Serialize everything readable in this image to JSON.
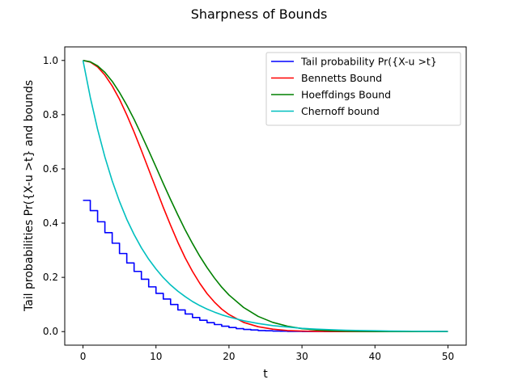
{
  "chart_data": {
    "type": "line",
    "title": "Sharpness of Bounds",
    "xlabel": "t",
    "ylabel": "Tail probabilities Pr({X-u >t} and bounds",
    "xlim": [
      -2.5,
      52.5
    ],
    "ylim": [
      -0.05,
      1.05
    ],
    "xticks": [
      0,
      10,
      20,
      30,
      40,
      50
    ],
    "yticks": [
      0.0,
      0.2,
      0.4,
      0.6,
      0.8,
      1.0
    ],
    "xtick_labels": [
      "0",
      "10",
      "20",
      "30",
      "40",
      "50"
    ],
    "ytick_labels": [
      "0.0",
      "0.2",
      "0.4",
      "0.6",
      "0.8",
      "1.0"
    ],
    "grid": false,
    "legend_position": "top-right",
    "series": [
      {
        "name": "Tail probability Pr({X-u >t}",
        "color": "#0000ff",
        "step": true,
        "x": [
          0,
          1,
          2,
          3,
          4,
          5,
          6,
          7,
          8,
          9,
          10,
          11,
          12,
          13,
          14,
          15,
          16,
          17,
          18,
          19,
          20,
          21,
          22,
          23,
          24,
          25,
          26,
          27,
          28,
          29,
          30,
          31,
          32,
          33,
          34,
          35,
          36,
          37,
          38,
          39,
          40,
          41,
          42,
          43,
          44,
          45,
          46,
          47,
          48,
          49,
          50
        ],
        "y": [
          0.484,
          0.446,
          0.405,
          0.365,
          0.326,
          0.288,
          0.253,
          0.222,
          0.193,
          0.165,
          0.141,
          0.12,
          0.1,
          0.08,
          0.065,
          0.052,
          0.042,
          0.033,
          0.026,
          0.02,
          0.015,
          0.011,
          0.008,
          0.006,
          0.004,
          0.003,
          0.002,
          0.0015,
          0.001,
          0.0008,
          0.0005,
          0.0004,
          0.0003,
          0.0002,
          0.0001,
          0.0001,
          0.0001,
          0.0,
          0.0,
          0.0,
          0.0,
          0.0,
          0.0,
          0.0,
          0.0,
          0.0,
          0.0,
          0.0,
          0.0,
          0.0,
          0.0
        ]
      },
      {
        "name": "Bennetts Bound",
        "color": "#ff0000",
        "x": [
          0,
          1,
          2,
          3,
          4,
          5,
          6,
          7,
          8,
          9,
          10,
          11,
          12,
          13,
          14,
          15,
          16,
          17,
          18,
          19,
          20,
          22,
          24,
          26,
          28,
          30,
          32,
          34,
          36,
          38,
          40,
          42,
          44,
          46,
          48,
          50
        ],
        "y": [
          1.0,
          0.994,
          0.976,
          0.946,
          0.906,
          0.857,
          0.799,
          0.736,
          0.668,
          0.598,
          0.528,
          0.458,
          0.392,
          0.329,
          0.272,
          0.222,
          0.178,
          0.14,
          0.109,
          0.083,
          0.063,
          0.034,
          0.018,
          0.009,
          0.004,
          0.002,
          0.0009,
          0.0004,
          0.0002,
          0.0001,
          4e-05,
          2e-05,
          1e-05,
          0.0,
          0.0,
          0.0
        ]
      },
      {
        "name": "Hoeffdings Bound",
        "color": "#008000",
        "x": [
          0,
          1,
          2,
          3,
          4,
          5,
          6,
          7,
          8,
          9,
          10,
          11,
          12,
          13,
          14,
          15,
          16,
          17,
          18,
          19,
          20,
          22,
          24,
          26,
          28,
          30,
          32,
          34,
          36,
          38,
          40,
          42,
          44,
          46,
          48,
          50
        ],
        "y": [
          1.0,
          0.995,
          0.98,
          0.956,
          0.923,
          0.882,
          0.835,
          0.783,
          0.726,
          0.667,
          0.607,
          0.546,
          0.487,
          0.43,
          0.375,
          0.325,
          0.278,
          0.236,
          0.198,
          0.164,
          0.135,
          0.089,
          0.056,
          0.034,
          0.02,
          0.011,
          0.006,
          0.003,
          0.0015,
          0.0007,
          0.0003,
          0.00015,
          6e-05,
          3e-05,
          1e-05,
          0.0
        ]
      },
      {
        "name": "Chernoff bound",
        "color": "#00bfbf",
        "x": [
          0,
          1,
          2,
          3,
          4,
          5,
          6,
          7,
          8,
          9,
          10,
          11,
          12,
          13,
          14,
          15,
          16,
          17,
          18,
          19,
          20,
          22,
          24,
          26,
          28,
          30,
          32,
          34,
          36,
          38,
          40,
          42,
          44,
          46,
          48,
          50
        ],
        "y": [
          1.0,
          0.864,
          0.746,
          0.644,
          0.556,
          0.48,
          0.414,
          0.358,
          0.309,
          0.267,
          0.231,
          0.199,
          0.172,
          0.149,
          0.129,
          0.111,
          0.096,
          0.083,
          0.072,
          0.062,
          0.054,
          0.04,
          0.03,
          0.022,
          0.017,
          0.012,
          0.009,
          0.007,
          0.005,
          0.004,
          0.003,
          0.002,
          0.0016,
          0.0012,
          0.0009,
          0.0007
        ]
      }
    ]
  }
}
